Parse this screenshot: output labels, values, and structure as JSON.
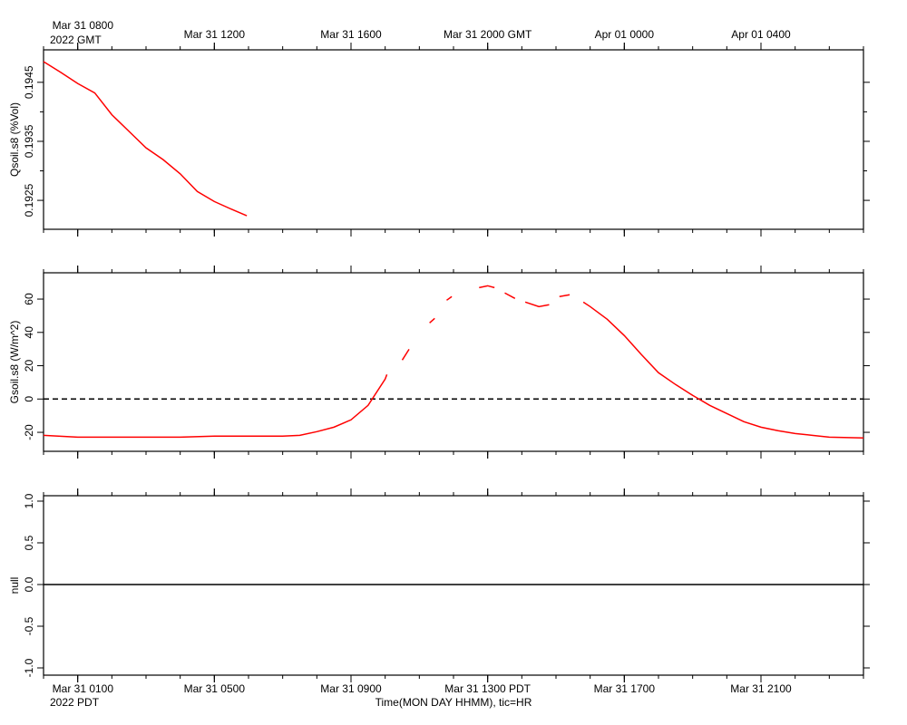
{
  "chart_data": [
    {
      "type": "line",
      "y_label": "Qsoil.s8 (%Vol)",
      "xlim": [
        0,
        24
      ],
      "ylim": [
        0.19201,
        0.19505
      ],
      "yticks": [
        0.1925,
        0.1935,
        0.1945
      ],
      "yminorticks": [
        0.193,
        0.194
      ],
      "x2ticks": [
        {
          "value": 1,
          "label": "Mar 31 0800"
        },
        {
          "value": 5,
          "label": "Mar 31 1200"
        },
        {
          "value": 9,
          "label": "Mar 31 1600"
        },
        {
          "value": 13,
          "label": "Mar 31 2000 GMT"
        },
        {
          "value": 17,
          "label": "Apr 01 0000"
        },
        {
          "value": 21,
          "label": "Apr 01 0400"
        }
      ],
      "x2_note": "2022 GMT",
      "xminorticks": [
        0,
        1,
        2,
        3,
        4,
        5,
        6,
        7,
        8,
        9,
        10,
        11,
        12,
        13,
        14,
        15,
        16,
        17,
        18,
        19,
        20,
        21,
        22,
        23,
        24
      ],
      "series": [
        {
          "color": "#ff0000",
          "x": [
            0,
            0.5,
            1,
            1.5,
            2,
            2.5,
            3,
            3.5,
            4,
            4.5,
            5,
            5.5,
            5.95
          ],
          "values": [
            0.19485,
            0.19467,
            0.19448,
            0.19432,
            0.19395,
            0.19367,
            0.19339,
            0.19319,
            0.19295,
            0.19265,
            0.19248,
            0.19235,
            0.19224
          ]
        }
      ]
    },
    {
      "type": "line",
      "y_label": "Gsoil.s8 (W/m^2)",
      "xlim": [
        0,
        24
      ],
      "ylim": [
        -31.4,
        75.8
      ],
      "yticks": [
        -20,
        0,
        20,
        40,
        60
      ],
      "hline": {
        "value": 0,
        "style": "dashed"
      },
      "xminorticks": [
        0,
        1,
        2,
        3,
        4,
        5,
        6,
        7,
        8,
        9,
        10,
        11,
        12,
        13,
        14,
        15,
        16,
        17,
        18,
        19,
        20,
        21,
        22,
        23,
        24
      ],
      "series": [
        {
          "color": "#ff0000",
          "x": [
            0,
            1,
            2,
            3,
            4,
            5,
            6,
            7,
            7.5,
            8,
            8.5,
            9,
            9.5,
            10,
            10.05,
            10.2,
            10.5,
            10.7,
            10.9,
            11.3,
            11.45,
            11.6,
            11.8,
            11.95,
            12.3,
            12.75,
            13,
            13.2,
            13.35,
            13.5,
            13.8,
            14,
            14.1,
            14.5,
            14.8,
            14.95,
            15.1,
            15.4,
            15.55,
            15.8,
            16,
            16.5,
            17,
            17.5,
            18,
            18.5,
            19,
            19.5,
            20,
            20.5,
            21,
            21.5,
            22,
            22.5,
            23,
            24
          ],
          "values": [
            -21.8,
            -22.9,
            -22.9,
            -22.9,
            -22.9,
            -22.3,
            -22.3,
            -22.3,
            -21.8,
            -19.6,
            -16.9,
            -12.5,
            -3.8,
            12,
            14.7,
            null,
            23.4,
            29.9,
            null,
            45.7,
            48.4,
            null,
            59.3,
            61.5,
            null,
            66.9,
            68.0,
            66.9,
            null,
            63.7,
            60.4,
            null,
            58.2,
            55.5,
            56.6,
            null,
            61.5,
            62.6,
            null,
            58.2,
            55.5,
            47.9,
            38.1,
            26.7,
            15.8,
            8.7,
            2.2,
            -3.8,
            -8.7,
            -13.6,
            -16.9,
            -19.0,
            -20.7,
            -21.8,
            -22.9,
            -23.4
          ]
        }
      ]
    },
    {
      "type": "line",
      "y_label": "null",
      "xlim": [
        0,
        24
      ],
      "ylim": [
        -1.087,
        1.065
      ],
      "yticks": [
        {
          "value": -1,
          "label": "-1.0"
        },
        {
          "value": -0.5,
          "label": "-0.5"
        },
        {
          "value": 0,
          "label": "0.0"
        },
        {
          "value": 0.5,
          "label": "0.5"
        },
        {
          "value": 1,
          "label": "1.0"
        }
      ],
      "hline": {
        "value": 0,
        "style": "solid"
      },
      "xticks": [
        {
          "value": 1,
          "label": "Mar 31 0100"
        },
        {
          "value": 5,
          "label": "Mar 31 0500"
        },
        {
          "value": 9,
          "label": "Mar 31 0900"
        },
        {
          "value": 13,
          "label": "Mar 31 1300 PDT"
        },
        {
          "value": 17,
          "label": "Mar 31 1700"
        },
        {
          "value": 21,
          "label": "Mar 31 2100"
        }
      ],
      "x_note": "2022 PDT",
      "x_label": "Time(MON DAY HHMM), tic=HR",
      "xminorticks": [
        0,
        1,
        2,
        3,
        4,
        5,
        6,
        7,
        8,
        9,
        10,
        11,
        12,
        13,
        14,
        15,
        16,
        17,
        18,
        19,
        20,
        21,
        22,
        23,
        24
      ],
      "series": []
    }
  ]
}
